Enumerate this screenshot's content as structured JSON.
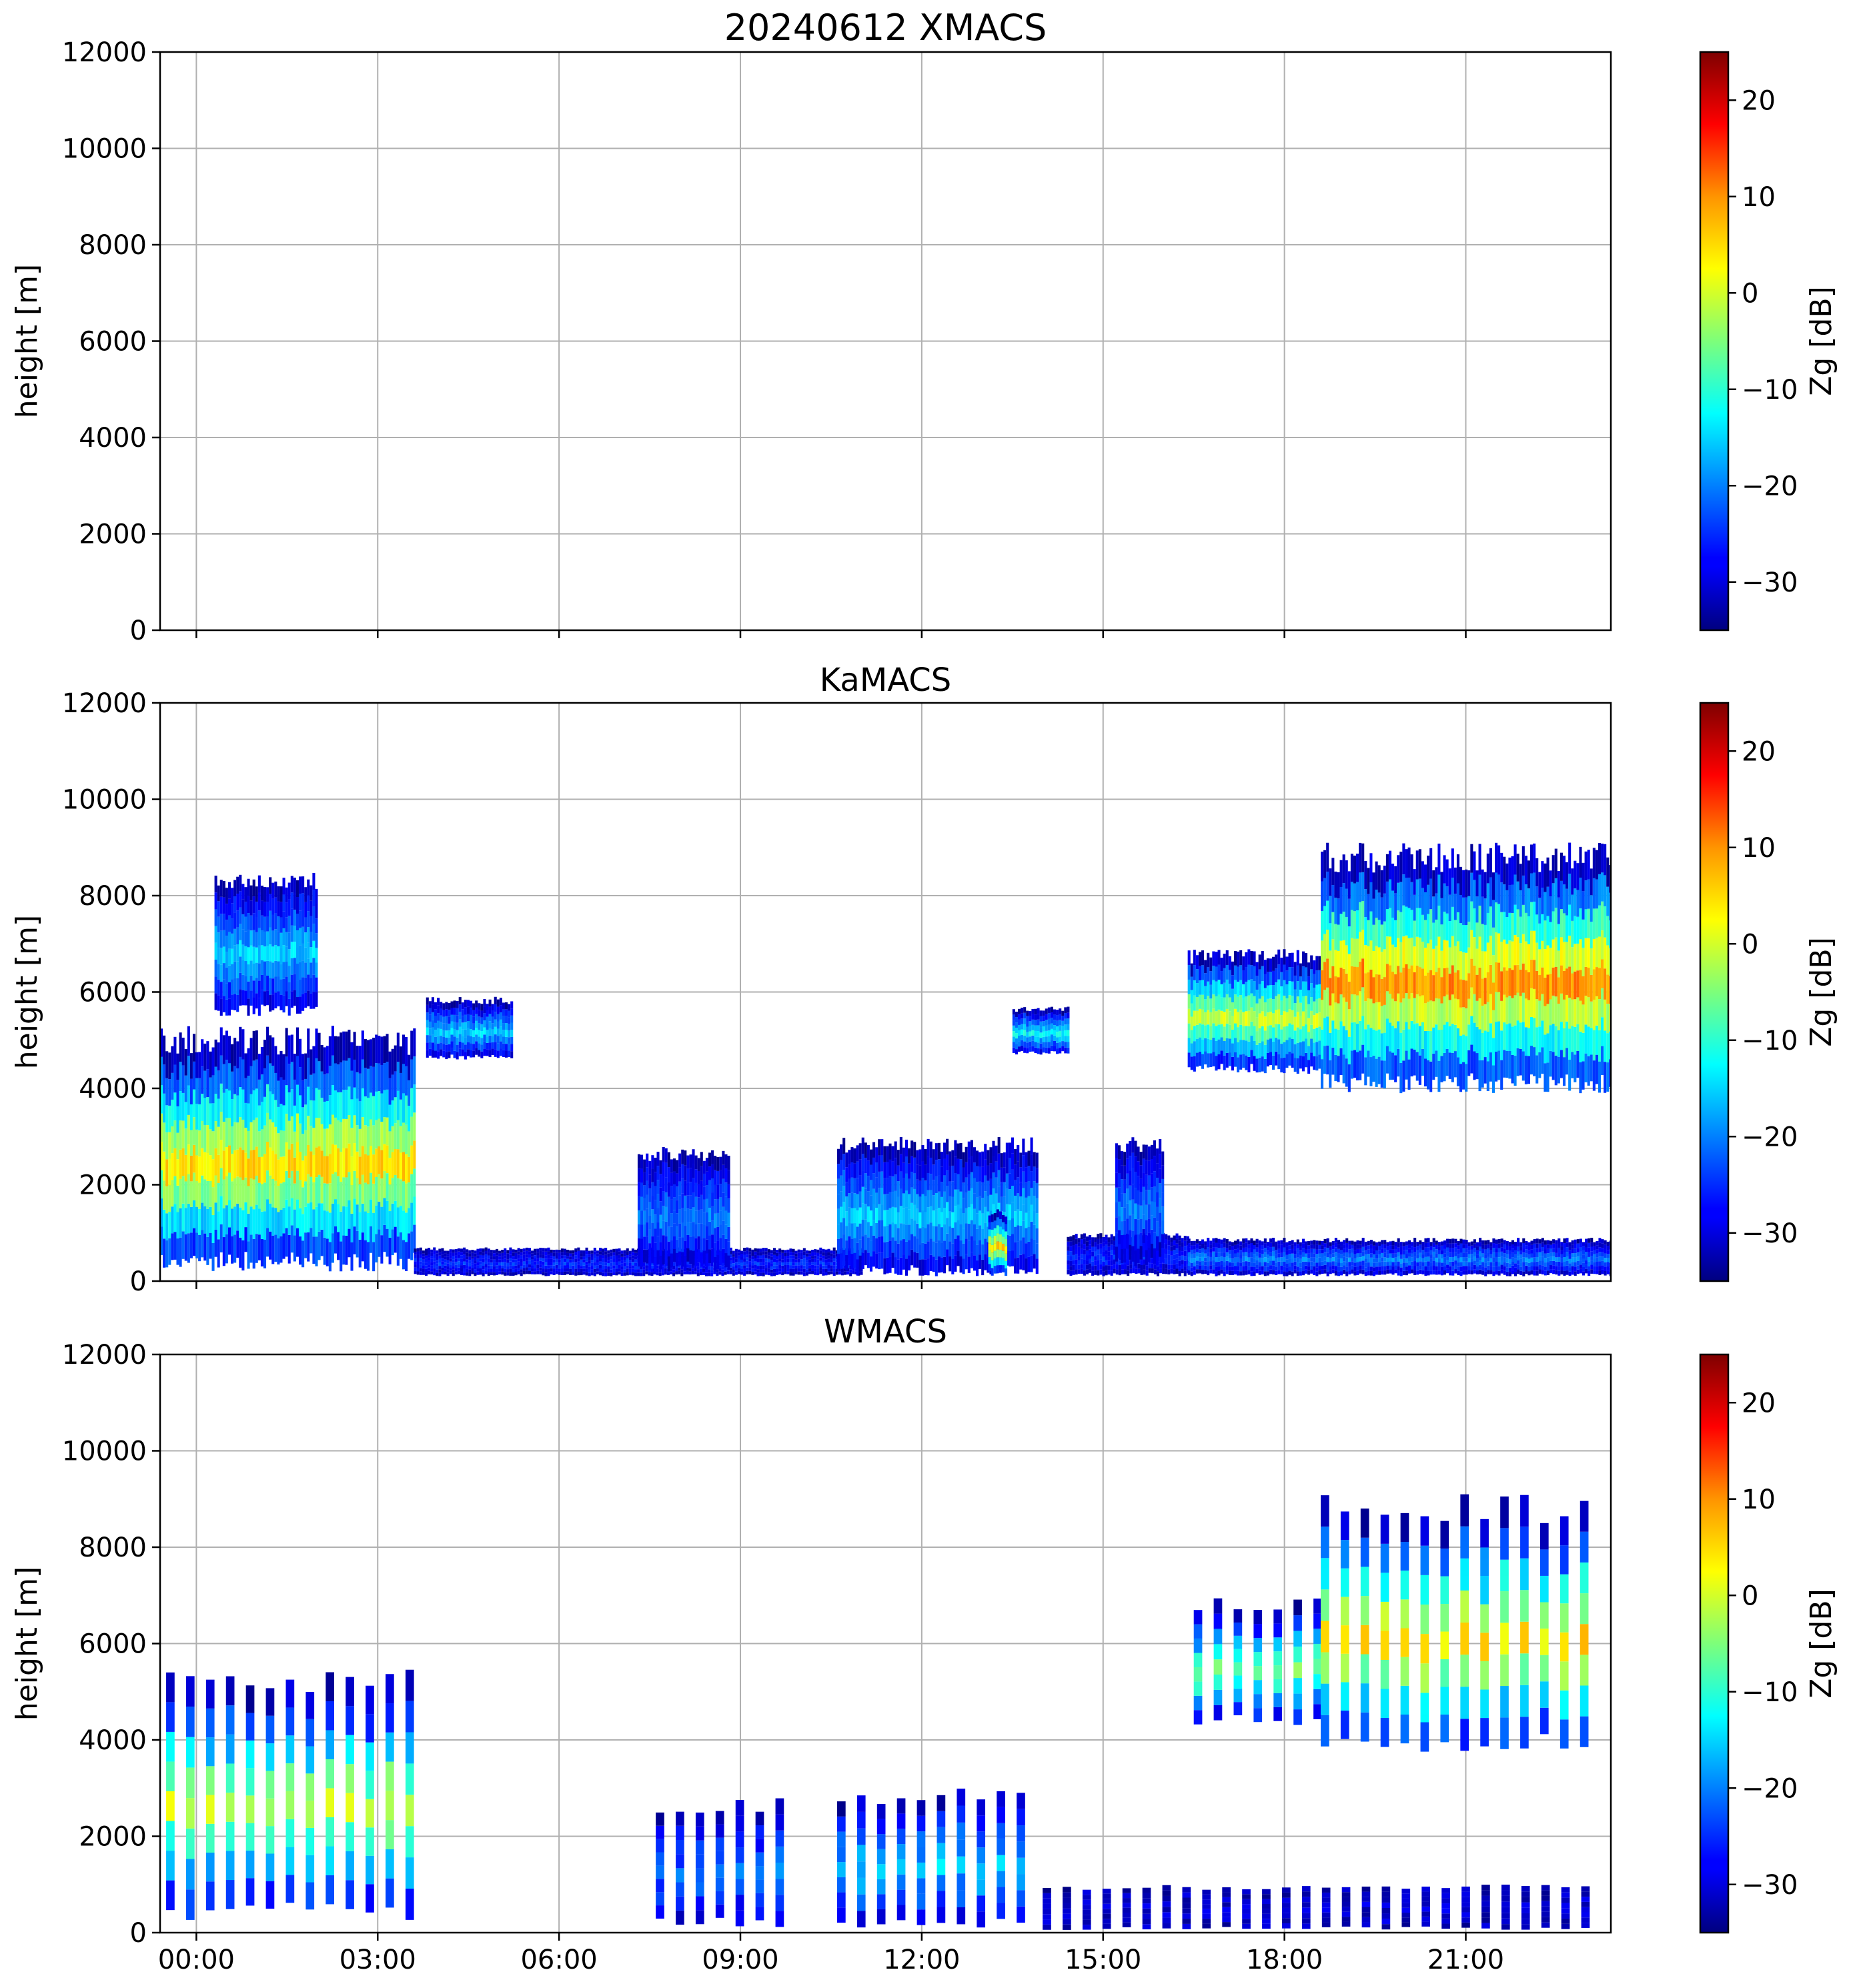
{
  "chart_data": [
    {
      "type": "heatmap",
      "title": "20240612 XMACS",
      "xlabel": "",
      "ylabel": "height [m]",
      "colorbar_label": "Zg [dB]",
      "xlim_hours": [
        -0.6,
        23.4
      ],
      "ylim": [
        0,
        12000
      ],
      "yticks": [
        0,
        2000,
        4000,
        6000,
        8000,
        10000,
        12000
      ],
      "xticks_hours": [
        0,
        3,
        6,
        9,
        12,
        15,
        18,
        21
      ],
      "xtick_labels": [],
      "colorbar_range": [
        -35,
        25
      ],
      "colorbar_ticks": [
        20,
        10,
        0,
        -10,
        -20,
        -30
      ],
      "colorbar_tick_labels": [
        "20",
        "10",
        "0",
        "−10",
        "−20",
        "−30"
      ],
      "grid": true,
      "echo_regions": []
    },
    {
      "type": "heatmap",
      "title": "KaMACS",
      "xlabel": "",
      "ylabel": "height [m]",
      "colorbar_label": "Zg [dB]",
      "xlim_hours": [
        -0.6,
        23.4
      ],
      "ylim": [
        0,
        12000
      ],
      "yticks": [
        0,
        2000,
        4000,
        6000,
        8000,
        10000,
        12000
      ],
      "xticks_hours": [
        0,
        3,
        6,
        9,
        12,
        15,
        18,
        21
      ],
      "xtick_labels": [],
      "colorbar_range": [
        -35,
        25
      ],
      "colorbar_ticks": [
        20,
        10,
        0,
        -10,
        -20,
        -30
      ],
      "colorbar_tick_labels": [
        "20",
        "10",
        "0",
        "−10",
        "−20",
        "−30"
      ],
      "grid": true,
      "echo_regions": [
        {
          "t0": -0.6,
          "t1": 3.6,
          "z0": 200,
          "z1": 5300,
          "zg_peak": 5
        },
        {
          "t0": 0.3,
          "t1": 2.0,
          "z0": 5500,
          "z1": 8500,
          "zg_peak": -15
        },
        {
          "t0": 3.8,
          "t1": 5.2,
          "z0": 4600,
          "z1": 5900,
          "zg_peak": -15
        },
        {
          "t0": 3.6,
          "t1": 11.0,
          "z0": 100,
          "z1": 700,
          "zg_peak": -25
        },
        {
          "t0": 7.3,
          "t1": 8.8,
          "z0": 200,
          "z1": 2800,
          "zg_peak": -20
        },
        {
          "t0": 10.6,
          "t1": 13.9,
          "z0": 100,
          "z1": 3000,
          "zg_peak": -15
        },
        {
          "t0": 13.1,
          "t1": 13.4,
          "z0": 100,
          "z1": 1500,
          "zg_peak": 5
        },
        {
          "t0": 14.4,
          "t1": 16.4,
          "z0": 100,
          "z1": 1000,
          "zg_peak": -25
        },
        {
          "t0": 15.2,
          "t1": 16.0,
          "z0": 300,
          "z1": 3000,
          "zg_peak": -20
        },
        {
          "t0": 13.5,
          "t1": 14.4,
          "z0": 4700,
          "z1": 5700,
          "zg_peak": -12
        },
        {
          "t0": 16.4,
          "t1": 18.6,
          "z0": 4300,
          "z1": 6900,
          "zg_peak": 0
        },
        {
          "t0": 18.6,
          "t1": 23.4,
          "z0": 3900,
          "z1": 9100,
          "zg_peak": 10
        },
        {
          "t0": 16.4,
          "t1": 23.4,
          "z0": 100,
          "z1": 900,
          "zg_peak": -20
        }
      ]
    },
    {
      "type": "heatmap",
      "title": "WMACS",
      "xlabel": "",
      "ylabel": "height [m]",
      "colorbar_label": "Zg [dB]",
      "xlim_hours": [
        -0.6,
        23.4
      ],
      "ylim": [
        0,
        12000
      ],
      "yticks": [
        0,
        2000,
        4000,
        6000,
        8000,
        10000,
        12000
      ],
      "xticks_hours": [
        0,
        3,
        6,
        9,
        12,
        15,
        18,
        21
      ],
      "xtick_labels": [
        "00:00",
        "03:00",
        "06:00",
        "09:00",
        "12:00",
        "15:00",
        "18:00",
        "21:00"
      ],
      "colorbar_range": [
        -35,
        25
      ],
      "colorbar_ticks": [
        20,
        10,
        0,
        -10,
        -20,
        -30
      ],
      "colorbar_tick_labels": [
        "20",
        "10",
        "0",
        "−10",
        "−20",
        "−30"
      ],
      "grid": true,
      "echo_regions": [
        {
          "t0": -0.5,
          "t1": 3.5,
          "z0": 200,
          "z1": 5500,
          "zg_peak": 0,
          "striped": true
        },
        {
          "t0": 7.6,
          "t1": 9.6,
          "z0": 100,
          "z1": 2800,
          "zg_peak": -20,
          "striped": true
        },
        {
          "t0": 10.6,
          "t1": 13.8,
          "z0": 100,
          "z1": 3000,
          "zg_peak": -15,
          "striped": true
        },
        {
          "t0": 16.5,
          "t1": 18.6,
          "z0": 4300,
          "z1": 7000,
          "zg_peak": -5,
          "striped": true
        },
        {
          "t0": 18.6,
          "t1": 23.2,
          "z0": 3700,
          "z1": 9100,
          "zg_peak": 5,
          "striped": true
        },
        {
          "t0": 14.0,
          "t1": 23.2,
          "z0": 50,
          "z1": 1000,
          "zg_peak": -30,
          "striped": true
        }
      ]
    }
  ]
}
